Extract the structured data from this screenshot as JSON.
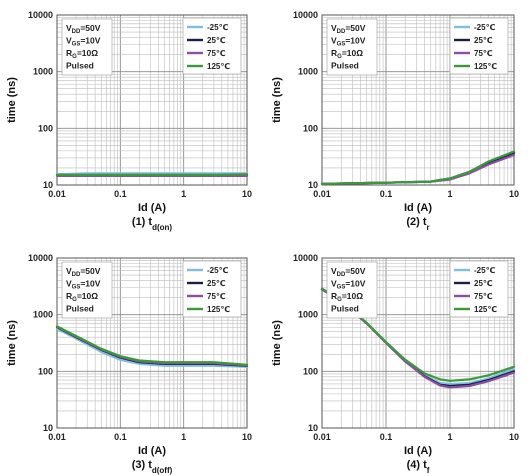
{
  "chart_data": [
    {
      "type": "line",
      "caption": "(1) t",
      "caption_sub": "d(on)",
      "xlabel": "Id (A)",
      "ylabel": "time (ns)",
      "xscale": "log",
      "yscale": "log",
      "xlim": [
        0.01,
        10
      ],
      "ylim": [
        10,
        10000
      ],
      "grid": true,
      "xticks": [
        "0.01",
        "0.1",
        "1",
        "10"
      ],
      "yticks": [
        "10",
        "100",
        "1000",
        "10000"
      ],
      "conditions": [
        "VDD=50V",
        "VGS=10V",
        "RG=10Ω",
        "Pulsed"
      ],
      "legend_position": "top-right",
      "series": [
        {
          "name": "-25℃",
          "color": "#7fbfdd",
          "x": [
            0.01,
            0.03,
            0.1,
            0.3,
            1,
            3,
            10
          ],
          "y": [
            15.5,
            16,
            16,
            16,
            16,
            16,
            16
          ]
        },
        {
          "name": "25℃",
          "color": "#1a1f4a",
          "x": [
            0.01,
            0.03,
            0.1,
            0.3,
            1,
            3,
            10
          ],
          "y": [
            15,
            15,
            15,
            15,
            15,
            15,
            15
          ]
        },
        {
          "name": "75℃",
          "color": "#8a4fa0",
          "x": [
            0.01,
            0.03,
            0.1,
            0.3,
            1,
            3,
            10
          ],
          "y": [
            14.5,
            14.5,
            14.5,
            14.5,
            14.5,
            14.5,
            14.5
          ]
        },
        {
          "name": "125℃",
          "color": "#3a9a3a",
          "x": [
            0.01,
            0.03,
            0.1,
            0.3,
            1,
            3,
            10
          ],
          "y": [
            15,
            15,
            15,
            15,
            15,
            15,
            15.5
          ]
        }
      ]
    },
    {
      "type": "line",
      "caption": "(2) t",
      "caption_sub": "r",
      "xlabel": "Id (A)",
      "ylabel": "time (ns)",
      "xscale": "log",
      "yscale": "log",
      "xlim": [
        0.01,
        10
      ],
      "ylim": [
        10,
        10000
      ],
      "grid": true,
      "xticks": [
        "0.01",
        "0.1",
        "1",
        "10"
      ],
      "yticks": [
        "10",
        "100",
        "1000",
        "10000"
      ],
      "conditions": [
        "VDD=50V",
        "VGS=10V",
        "RG=10Ω",
        "Pulsed"
      ],
      "legend_position": "top-right",
      "series": [
        {
          "name": "-25℃",
          "color": "#7fbfdd",
          "x": [
            0.01,
            0.1,
            0.5,
            1,
            2,
            4,
            10
          ],
          "y": [
            10.5,
            11,
            11.5,
            13,
            17,
            24,
            36
          ]
        },
        {
          "name": "25℃",
          "color": "#1a1f4a",
          "x": [
            0.01,
            0.1,
            0.5,
            1,
            2,
            4,
            10
          ],
          "y": [
            10.5,
            11,
            11.5,
            13,
            17,
            25,
            37
          ]
        },
        {
          "name": "75℃",
          "color": "#8a4fa0",
          "x": [
            0.01,
            0.1,
            0.5,
            1,
            2,
            4,
            10
          ],
          "y": [
            10.5,
            11,
            11.5,
            12.5,
            16,
            23,
            34
          ]
        },
        {
          "name": "125℃",
          "color": "#3a9a3a",
          "x": [
            0.01,
            0.1,
            0.5,
            1,
            2,
            4,
            10
          ],
          "y": [
            10.5,
            11,
            11.5,
            13,
            17,
            26,
            39
          ]
        }
      ]
    },
    {
      "type": "line",
      "caption": "(3) t",
      "caption_sub": "d(off)",
      "xlabel": "Id (A)",
      "ylabel": "time (ns)",
      "xscale": "log",
      "yscale": "log",
      "xlim": [
        0.01,
        10
      ],
      "ylim": [
        10,
        10000
      ],
      "grid": true,
      "xticks": [
        "0.01",
        "0.1",
        "1",
        "10"
      ],
      "yticks": [
        "10",
        "100",
        "1000",
        "10000"
      ],
      "conditions": [
        "VDD=50V",
        "VGS=10V",
        "RG=10Ω",
        "Pulsed"
      ],
      "legend_position": "top-right",
      "series": [
        {
          "name": "-25℃",
          "color": "#7fbfdd",
          "x": [
            0.01,
            0.02,
            0.05,
            0.1,
            0.2,
            0.5,
            1,
            3,
            10
          ],
          "y": [
            560,
            380,
            220,
            160,
            135,
            125,
            125,
            125,
            120
          ]
        },
        {
          "name": "25℃",
          "color": "#1a1f4a",
          "x": [
            0.01,
            0.02,
            0.05,
            0.1,
            0.2,
            0.5,
            1,
            3,
            10
          ],
          "y": [
            600,
            400,
            240,
            175,
            145,
            135,
            135,
            135,
            125
          ]
        },
        {
          "name": "75℃",
          "color": "#8a4fa0",
          "x": [
            0.01,
            0.02,
            0.05,
            0.1,
            0.2,
            0.5,
            1,
            3,
            10
          ],
          "y": [
            610,
            410,
            245,
            180,
            150,
            140,
            140,
            140,
            128
          ]
        },
        {
          "name": "125℃",
          "color": "#3a9a3a",
          "x": [
            0.01,
            0.02,
            0.05,
            0.1,
            0.2,
            0.5,
            1,
            3,
            10
          ],
          "y": [
            620,
            420,
            250,
            185,
            155,
            145,
            145,
            145,
            130
          ]
        }
      ]
    },
    {
      "type": "line",
      "caption": "(4) t",
      "caption_sub": "f",
      "xlabel": "Id (A)",
      "ylabel": "time (ns)",
      "xscale": "log",
      "yscale": "log",
      "xlim": [
        0.01,
        10
      ],
      "ylim": [
        10,
        10000
      ],
      "grid": true,
      "xticks": [
        "0.01",
        "0.1",
        "1",
        "10"
      ],
      "yticks": [
        "10",
        "100",
        "1000",
        "10000"
      ],
      "conditions": [
        "VDD=50V",
        "VGS=10V",
        "RG=10Ω",
        "Pulsed"
      ],
      "legend_position": "top-right",
      "series": [
        {
          "name": "-25℃",
          "color": "#7fbfdd",
          "x": [
            0.01,
            0.02,
            0.05,
            0.1,
            0.2,
            0.4,
            0.7,
            1,
            2,
            4,
            10
          ],
          "y": [
            2800,
            1700,
            700,
            320,
            150,
            85,
            62,
            60,
            62,
            75,
            110
          ]
        },
        {
          "name": "25℃",
          "color": "#1a1f4a",
          "x": [
            0.01,
            0.02,
            0.05,
            0.1,
            0.2,
            0.4,
            0.7,
            1,
            2,
            4,
            10
          ],
          "y": [
            2800,
            1700,
            700,
            320,
            150,
            82,
            58,
            55,
            58,
            70,
            100
          ]
        },
        {
          "name": "75℃",
          "color": "#8a4fa0",
          "x": [
            0.01,
            0.02,
            0.05,
            0.1,
            0.2,
            0.4,
            0.7,
            1,
            2,
            4,
            10
          ],
          "y": [
            2800,
            1700,
            700,
            320,
            150,
            80,
            56,
            52,
            55,
            67,
            95
          ]
        },
        {
          "name": "125℃",
          "color": "#3a9a3a",
          "x": [
            0.01,
            0.02,
            0.05,
            0.1,
            0.2,
            0.4,
            0.7,
            1,
            2,
            4,
            10
          ],
          "y": [
            2900,
            1750,
            720,
            330,
            160,
            92,
            72,
            68,
            72,
            85,
            120
          ]
        }
      ]
    }
  ]
}
